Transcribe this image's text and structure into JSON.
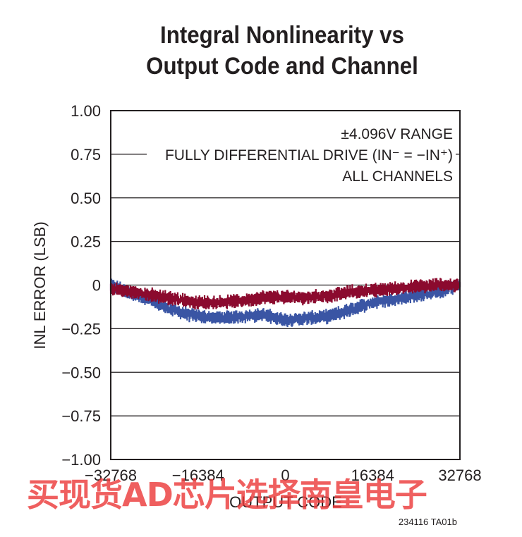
{
  "chart_data": {
    "type": "line",
    "title_lines": [
      "Integral Nonlinearity vs",
      "Output Code and Channel"
    ],
    "xlabel": "OUTPUT CODE",
    "ylabel": "INL ERROR (LSB)",
    "xlim": [
      -32768,
      32768
    ],
    "ylim": [
      -1.0,
      1.0
    ],
    "x_ticks": [
      -32768,
      -16384,
      0,
      16384,
      32768
    ],
    "x_tick_labels": [
      "−32768",
      "−16384",
      "0",
      "16384",
      "32768"
    ],
    "y_ticks": [
      1.0,
      0.75,
      0.5,
      0.25,
      0,
      -0.25,
      -0.5,
      -0.75,
      -1.0
    ],
    "y_tick_labels": [
      "1.00",
      "0.75",
      "0.50",
      "0.25",
      "0",
      "−0.25",
      "−0.50",
      "−0.75",
      "−1.00"
    ],
    "grid": "horizontal",
    "annotation_lines": [
      "±4.096V RANGE",
      "FULLY DIFFERENTIAL DRIVE (IN⁻ = −IN⁺)",
      "ALL CHANNELS"
    ],
    "series": [
      {
        "color": "#3a55a4",
        "x": [
          -32768,
          -28672,
          -24576,
          -20480,
          -16384,
          -12288,
          -8192,
          -4096,
          0,
          4096,
          8192,
          12288,
          16384,
          20480,
          24576,
          28672,
          32768
        ],
        "y": [
          0.0,
          -0.05,
          -0.1,
          -0.15,
          -0.18,
          -0.19,
          -0.18,
          -0.17,
          -0.2,
          -0.19,
          -0.18,
          -0.14,
          -0.1,
          -0.08,
          -0.06,
          -0.04,
          0.0
        ],
        "band": 0.025
      },
      {
        "color": "#8b0a2e",
        "x": [
          -32768,
          -28672,
          -24576,
          -20480,
          -16384,
          -12288,
          -8192,
          -4096,
          0,
          4096,
          8192,
          12288,
          16384,
          20480,
          24576,
          28672,
          32768
        ],
        "y": [
          -0.02,
          -0.04,
          -0.06,
          -0.08,
          -0.1,
          -0.1,
          -0.09,
          -0.07,
          -0.07,
          -0.07,
          -0.06,
          -0.04,
          -0.03,
          -0.02,
          -0.01,
          0.0,
          0.0
        ],
        "band": 0.025
      }
    ]
  },
  "figure_id": "234116 TA01b",
  "watermark": "买现货AD芯片选择南皇电子"
}
